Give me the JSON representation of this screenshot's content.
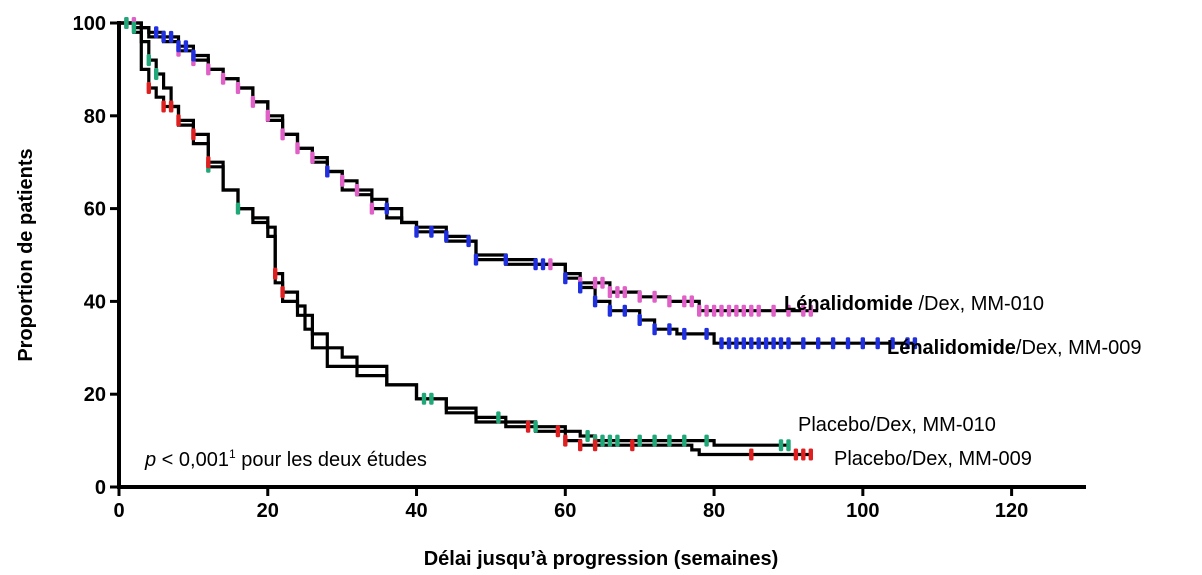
{
  "chart_data": {
    "type": "line",
    "title": "",
    "xlabel": "Délai jusqu’à progression (semaines)",
    "ylabel": "Proportion de patients",
    "xlim": [
      0,
      130
    ],
    "ylim": [
      0,
      100
    ],
    "xticks": [
      0,
      20,
      40,
      60,
      80,
      100,
      120
    ],
    "yticks": [
      0,
      20,
      40,
      60,
      80,
      100
    ],
    "grid": false,
    "annotation": {
      "italic": "p",
      "text": " < 0,001",
      "superscript": "1",
      "suffix": " pour les deux études"
    },
    "series": [
      {
        "name_bold": "Lénalidomide",
        "name_rest": " /Dex, MM-010",
        "censor_color": "#e060c8",
        "points": [
          [
            0,
            100
          ],
          [
            2,
            100
          ],
          [
            3,
            99
          ],
          [
            4,
            97
          ],
          [
            6,
            96
          ],
          [
            8,
            94
          ],
          [
            10,
            92
          ],
          [
            12,
            90
          ],
          [
            14,
            88
          ],
          [
            16,
            86
          ],
          [
            18,
            83
          ],
          [
            20,
            80
          ],
          [
            22,
            76
          ],
          [
            24,
            73
          ],
          [
            26,
            71
          ],
          [
            28,
            68
          ],
          [
            30,
            66
          ],
          [
            32,
            64
          ],
          [
            34,
            60
          ],
          [
            36,
            58
          ],
          [
            38,
            57
          ],
          [
            40,
            56
          ],
          [
            44,
            53
          ],
          [
            48,
            50
          ],
          [
            52,
            48
          ],
          [
            56,
            48
          ],
          [
            60,
            46
          ],
          [
            62,
            44
          ],
          [
            66,
            42
          ],
          [
            70,
            41
          ],
          [
            74,
            40
          ],
          [
            78,
            38
          ],
          [
            85,
            38
          ],
          [
            94,
            38
          ]
        ],
        "censors": [
          1,
          2,
          8,
          10,
          12,
          14,
          16,
          18,
          20,
          22,
          24,
          26,
          28,
          30,
          32,
          34,
          58,
          62,
          64,
          65,
          66,
          67,
          68,
          70,
          72,
          74,
          76,
          77,
          78,
          79,
          80,
          81,
          82,
          83,
          84,
          85,
          86,
          88,
          90,
          92,
          93
        ]
      },
      {
        "name_bold": "Lénalidomide",
        "name_rest": "/Dex, MM-009",
        "censor_color": "#2030e0",
        "points": [
          [
            0,
            100
          ],
          [
            2,
            100
          ],
          [
            3,
            99
          ],
          [
            4,
            98
          ],
          [
            6,
            97
          ],
          [
            8,
            95
          ],
          [
            10,
            93
          ],
          [
            12,
            90
          ],
          [
            14,
            88
          ],
          [
            16,
            86
          ],
          [
            18,
            83
          ],
          [
            20,
            79
          ],
          [
            22,
            76
          ],
          [
            24,
            73
          ],
          [
            26,
            70
          ],
          [
            28,
            68
          ],
          [
            30,
            64
          ],
          [
            32,
            63
          ],
          [
            34,
            62
          ],
          [
            36,
            60
          ],
          [
            38,
            57
          ],
          [
            40,
            55
          ],
          [
            44,
            54
          ],
          [
            47,
            53
          ],
          [
            48,
            49
          ],
          [
            56,
            48
          ],
          [
            60,
            45
          ],
          [
            62,
            43
          ],
          [
            64,
            40
          ],
          [
            66,
            38
          ],
          [
            70,
            36
          ],
          [
            72,
            34
          ],
          [
            75,
            33
          ],
          [
            80,
            31
          ],
          [
            100,
            31
          ],
          [
            107,
            31
          ]
        ],
        "censors": [
          5,
          6,
          7,
          8,
          9,
          10,
          28,
          36,
          40,
          42,
          44,
          47,
          48,
          52,
          56,
          57,
          60,
          62,
          64,
          66,
          68,
          70,
          72,
          74,
          76,
          79,
          81,
          82,
          83,
          84,
          85,
          86,
          87,
          88,
          89,
          90,
          92,
          94,
          96,
          98,
          100,
          102,
          104,
          106,
          107
        ]
      },
      {
        "name": "Placebo/Dex, MM-010",
        "censor_color": "#20a878",
        "points": [
          [
            0,
            100
          ],
          [
            2,
            99
          ],
          [
            3,
            96
          ],
          [
            4,
            92
          ],
          [
            5,
            89
          ],
          [
            6,
            86
          ],
          [
            7,
            82
          ],
          [
            8,
            78
          ],
          [
            10,
            74
          ],
          [
            12,
            69
          ],
          [
            14,
            64
          ],
          [
            16,
            60
          ],
          [
            18,
            57
          ],
          [
            20,
            54
          ],
          [
            21,
            44
          ],
          [
            22,
            40
          ],
          [
            24,
            37
          ],
          [
            26,
            33
          ],
          [
            28,
            30
          ],
          [
            30,
            28
          ],
          [
            32,
            26
          ],
          [
            36,
            22
          ],
          [
            40,
            19
          ],
          [
            44,
            17
          ],
          [
            48,
            15
          ],
          [
            52,
            14
          ],
          [
            56,
            13
          ],
          [
            60,
            12
          ],
          [
            62,
            11
          ],
          [
            64,
            10
          ],
          [
            70,
            10
          ],
          [
            80,
            9
          ],
          [
            90,
            9
          ]
        ],
        "censors": [
          1,
          2,
          4,
          5,
          7,
          12,
          16,
          41,
          42,
          51,
          56,
          63,
          64,
          65,
          66,
          67,
          70,
          72,
          74,
          76,
          79,
          89,
          90
        ]
      },
      {
        "name": "Placebo/Dex, MM-009",
        "censor_color": "#e02020",
        "points": [
          [
            0,
            100
          ],
          [
            2,
            98
          ],
          [
            3,
            90
          ],
          [
            4,
            86
          ],
          [
            5,
            84
          ],
          [
            6,
            82
          ],
          [
            8,
            79
          ],
          [
            10,
            76
          ],
          [
            12,
            70
          ],
          [
            14,
            64
          ],
          [
            16,
            60
          ],
          [
            18,
            58
          ],
          [
            20,
            56
          ],
          [
            21,
            46
          ],
          [
            22,
            42
          ],
          [
            24,
            39
          ],
          [
            25,
            34
          ],
          [
            26,
            30
          ],
          [
            28,
            26
          ],
          [
            32,
            24
          ],
          [
            36,
            22
          ],
          [
            40,
            19
          ],
          [
            44,
            16
          ],
          [
            48,
            14
          ],
          [
            52,
            13
          ],
          [
            56,
            12
          ],
          [
            60,
            10
          ],
          [
            62,
            9
          ],
          [
            70,
            9
          ],
          [
            77,
            8
          ],
          [
            78,
            7
          ],
          [
            93,
            7
          ]
        ],
        "censors": [
          4,
          6,
          7,
          8,
          10,
          12,
          21,
          22,
          55,
          59,
          60,
          62,
          64,
          69,
          85,
          91,
          92,
          93
        ]
      }
    ]
  }
}
